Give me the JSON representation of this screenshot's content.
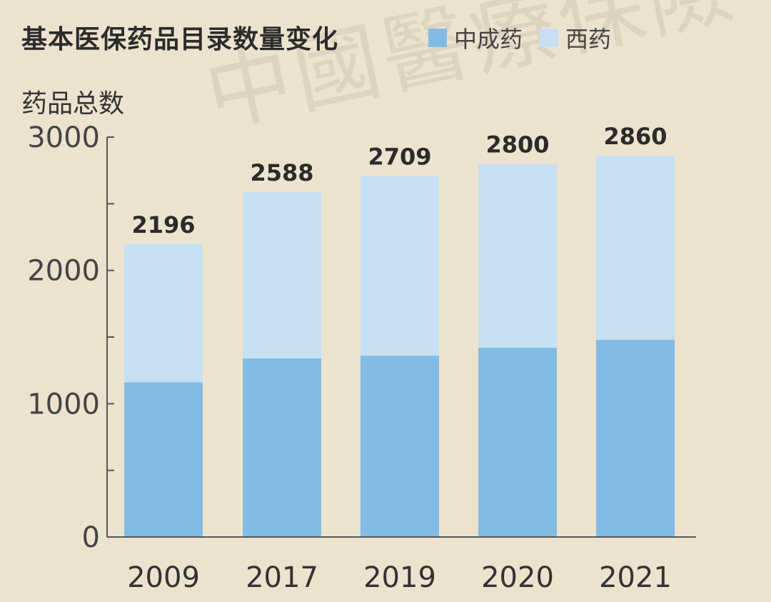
{
  "title": "基本医保药品目录数量变化",
  "legend": [
    {
      "name": "中成药",
      "color": "#82bce4"
    },
    {
      "name": "西药",
      "color": "#c6e0f1"
    }
  ],
  "watermark": "中國醫療保險",
  "chart_data": {
    "type": "bar",
    "stacked": true,
    "categories": [
      "2009",
      "2017",
      "2019",
      "2020",
      "2021"
    ],
    "series": [
      {
        "name": "中成药",
        "values": [
          1160,
          1340,
          1360,
          1420,
          1480
        ],
        "color": "#82bce4"
      },
      {
        "name": "西药",
        "values": [
          1036,
          1248,
          1349,
          1380,
          1380
        ],
        "color": "#c6e0f1"
      }
    ],
    "totals": [
      2196,
      2588,
      2709,
      2800,
      2860
    ],
    "ylabel": "药品总数",
    "xlabel": "",
    "ylim": [
      0,
      3000
    ],
    "yticks": [
      0,
      1000,
      2000,
      3000
    ],
    "grid": false,
    "legend_position": "top-right"
  }
}
